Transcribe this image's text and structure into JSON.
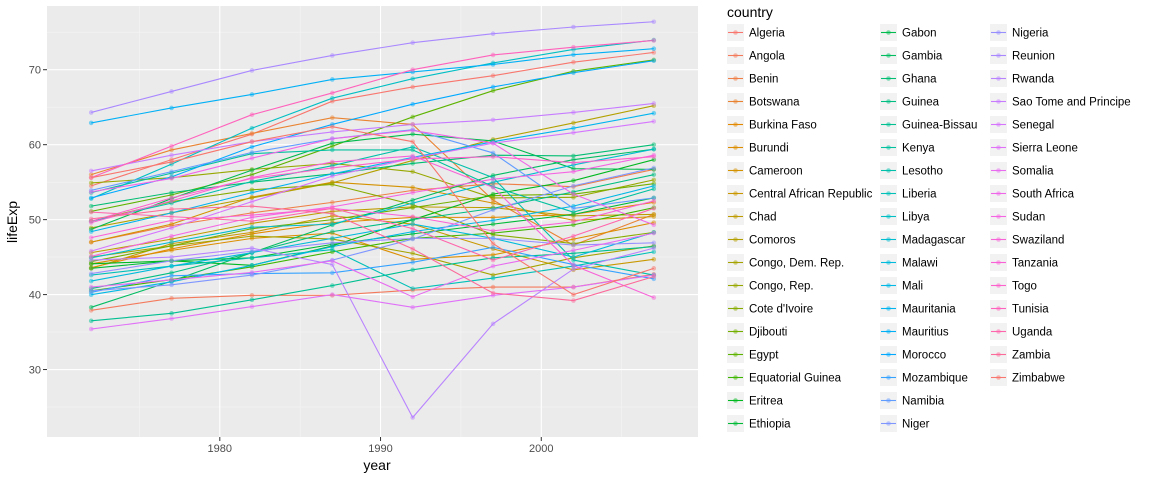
{
  "chart_data": {
    "type": "line",
    "xlabel": "year",
    "ylabel": "lifeExp",
    "xlim": [
      1969.25,
      2009.75
    ],
    "ylim": [
      21,
      78.5
    ],
    "x_ticks": [
      1980,
      1990,
      2000
    ],
    "y_ticks": [
      30,
      40,
      50,
      60,
      70
    ],
    "grid": true,
    "legend_title": "country",
    "legend_position": "right",
    "x": [
      1972,
      1977,
      1982,
      1987,
      1992,
      1997,
      2002,
      2007
    ],
    "series": [
      {
        "name": "Algeria",
        "color": "#F8766D",
        "values": [
          54.5,
          58.0,
          61.4,
          65.8,
          67.7,
          69.2,
          71.0,
          72.3
        ]
      },
      {
        "name": "Angola",
        "color": "#F47A5C",
        "values": [
          37.9,
          39.5,
          39.9,
          39.9,
          40.6,
          41.0,
          41.0,
          42.7
        ]
      },
      {
        "name": "Benin",
        "color": "#EF7F47",
        "values": [
          47.0,
          49.2,
          50.9,
          52.3,
          53.9,
          54.8,
          54.4,
          56.7
        ]
      },
      {
        "name": "Botswana",
        "color": "#EA8331",
        "values": [
          56.0,
          59.3,
          61.5,
          63.6,
          62.7,
          52.6,
          46.6,
          50.7
        ]
      },
      {
        "name": "Burkina Faso",
        "color": "#E38900",
        "values": [
          43.6,
          46.1,
          48.1,
          49.6,
          50.3,
          50.3,
          50.7,
          52.3
        ]
      },
      {
        "name": "Burundi",
        "color": "#DC8E00",
        "values": [
          44.1,
          45.9,
          47.5,
          48.2,
          44.7,
          45.3,
          47.4,
          49.6
        ]
      },
      {
        "name": "Cameroon",
        "color": "#D49200",
        "values": [
          47.0,
          49.4,
          53.0,
          55.0,
          54.3,
          52.2,
          49.9,
          50.4
        ]
      },
      {
        "name": "Central African Republic",
        "color": "#C99800",
        "values": [
          43.5,
          46.8,
          48.3,
          50.5,
          49.4,
          46.1,
          43.3,
          44.7
        ]
      },
      {
        "name": "Chad",
        "color": "#BE9C00",
        "values": [
          45.6,
          47.4,
          49.5,
          51.1,
          51.7,
          51.6,
          50.5,
          50.7
        ]
      },
      {
        "name": "Comoros",
        "color": "#B3A000",
        "values": [
          48.9,
          50.9,
          52.9,
          54.9,
          57.9,
          60.7,
          62.9,
          65.2
        ]
      },
      {
        "name": "Congo, Dem. Rep.",
        "color": "#A6A300",
        "values": [
          45.0,
          46.5,
          47.8,
          47.4,
          45.5,
          42.6,
          44.9,
          46.5
        ]
      },
      {
        "name": "Congo, Rep.",
        "color": "#97A800",
        "values": [
          54.9,
          55.6,
          56.7,
          57.5,
          56.4,
          52.9,
          52.97,
          55.3
        ]
      },
      {
        "name": "Cote d'Ivoire",
        "color": "#87AB00",
        "values": [
          49.8,
          52.4,
          53.98,
          54.7,
          52.0,
          47.99,
          46.8,
          48.3
        ]
      },
      {
        "name": "Djibouti",
        "color": "#74AF00",
        "values": [
          44.4,
          46.5,
          48.8,
          50.0,
          51.6,
          53.2,
          53.4,
          54.8
        ]
      },
      {
        "name": "Egypt",
        "color": "#5DB300",
        "values": [
          51.1,
          53.3,
          56.0,
          59.8,
          63.7,
          67.2,
          69.8,
          71.3
        ]
      },
      {
        "name": "Equatorial Guinea",
        "color": "#3DB600",
        "values": [
          40.5,
          42.0,
          43.7,
          45.7,
          47.5,
          48.2,
          49.3,
          51.6
        ]
      },
      {
        "name": "Eritrea",
        "color": "#00B81F",
        "values": [
          44.1,
          44.5,
          43.9,
          46.5,
          49.99,
          53.4,
          55.2,
          58.0
        ]
      },
      {
        "name": "Ethiopia",
        "color": "#00BA38",
        "values": [
          43.5,
          44.5,
          44.9,
          46.7,
          48.1,
          49.4,
          50.7,
          52.9
        ]
      },
      {
        "name": "Gabon",
        "color": "#00BB4E",
        "values": [
          48.7,
          52.8,
          56.6,
          60.2,
          61.4,
          60.5,
          56.8,
          56.7
        ]
      },
      {
        "name": "Gambia",
        "color": "#00BC61",
        "values": [
          38.3,
          41.8,
          45.6,
          49.3,
          52.6,
          55.9,
          58.0,
          59.4
        ]
      },
      {
        "name": "Ghana",
        "color": "#00BD72",
        "values": [
          51.8,
          53.6,
          55.0,
          56.1,
          57.5,
          58.6,
          58.5,
          60.0
        ]
      },
      {
        "name": "Guinea",
        "color": "#00BE82",
        "values": [
          40.8,
          42.9,
          45.6,
          48.4,
          50.0,
          51.5,
          53.7,
          56.0
        ]
      },
      {
        "name": "Guinea-Bissau",
        "color": "#00BF91",
        "values": [
          36.5,
          37.5,
          39.3,
          41.2,
          43.3,
          44.9,
          45.5,
          46.4
        ]
      },
      {
        "name": "Kenya",
        "color": "#00C09E",
        "values": [
          53.6,
          56.2,
          58.8,
          59.3,
          59.3,
          54.4,
          50.99,
          54.1
        ]
      },
      {
        "name": "Lesotho",
        "color": "#00C0AB",
        "values": [
          49.8,
          52.2,
          55.1,
          57.2,
          59.7,
          55.6,
          44.6,
          42.6
        ]
      },
      {
        "name": "Liberia",
        "color": "#00C0B8",
        "values": [
          42.6,
          43.8,
          44.9,
          46.0,
          40.8,
          42.2,
          43.8,
          45.7
        ]
      },
      {
        "name": "Libya",
        "color": "#00BFC4",
        "values": [
          52.8,
          57.4,
          62.2,
          66.2,
          68.8,
          70.9,
          72.7,
          73.95
        ]
      },
      {
        "name": "Madagascar",
        "color": "#00BDD0",
        "values": [
          44.9,
          47.0,
          48.99,
          49.4,
          52.2,
          54.98,
          57.3,
          59.4
        ]
      },
      {
        "name": "Malawi",
        "color": "#00BBDB",
        "values": [
          41.8,
          43.8,
          45.6,
          47.5,
          49.4,
          47.5,
          45.0,
          48.3
        ]
      },
      {
        "name": "Mali",
        "color": "#00B8E5",
        "values": [
          39.98,
          41.7,
          43.9,
          46.4,
          48.4,
          49.9,
          51.8,
          54.5
        ]
      },
      {
        "name": "Mauritania",
        "color": "#00B4EF",
        "values": [
          48.4,
          50.9,
          53.6,
          56.1,
          58.3,
          60.4,
          62.2,
          64.2
        ]
      },
      {
        "name": "Mauritius",
        "color": "#00B0F6",
        "values": [
          62.9,
          64.9,
          66.7,
          68.7,
          69.7,
          70.7,
          72.0,
          72.8
        ]
      },
      {
        "name": "Morocco",
        "color": "#00A9FF",
        "values": [
          52.9,
          55.7,
          59.7,
          62.7,
          65.4,
          67.7,
          69.6,
          71.2
        ]
      },
      {
        "name": "Mozambique",
        "color": "#35A2FF",
        "values": [
          40.3,
          42.5,
          42.8,
          42.9,
          44.3,
          46.3,
          44.0,
          42.1
        ]
      },
      {
        "name": "Namibia",
        "color": "#619CFF",
        "values": [
          53.9,
          56.4,
          58.97,
          60.8,
          62.0,
          58.9,
          51.5,
          52.9
        ]
      },
      {
        "name": "Niger",
        "color": "#7F96FF",
        "values": [
          40.5,
          41.3,
          42.6,
          44.6,
          47.4,
          51.3,
          54.5,
          56.9
        ]
      },
      {
        "name": "Nigeria",
        "color": "#988FFF",
        "values": [
          42.8,
          44.5,
          45.8,
          46.9,
          47.5,
          47.5,
          46.6,
          46.9
        ]
      },
      {
        "name": "Reunion",
        "color": "#A988FF",
        "values": [
          64.3,
          67.1,
          69.9,
          71.9,
          73.6,
          74.8,
          75.7,
          76.4
        ]
      },
      {
        "name": "Rwanda",
        "color": "#B983FF",
        "values": [
          44.6,
          45.0,
          46.2,
          44.0,
          23.6,
          36.1,
          43.4,
          46.2
        ]
      },
      {
        "name": "Sao Tome and Principe",
        "color": "#C77CFF",
        "values": [
          56.5,
          58.6,
          60.4,
          61.7,
          62.7,
          63.3,
          64.3,
          65.5
        ]
      },
      {
        "name": "Senegal",
        "color": "#D575FE",
        "values": [
          45.8,
          48.9,
          52.4,
          55.8,
          58.2,
          60.2,
          61.6,
          63.1
        ]
      },
      {
        "name": "Sierra Leone",
        "color": "#E070F8",
        "values": [
          35.4,
          36.8,
          38.4,
          40.0,
          38.3,
          39.9,
          41.0,
          42.6
        ]
      },
      {
        "name": "Somalia",
        "color": "#E86BF0",
        "values": [
          41.0,
          41.97,
          42.96,
          44.5,
          39.7,
          43.8,
          45.9,
          48.2
        ]
      },
      {
        "name": "South Africa",
        "color": "#F066E9",
        "values": [
          53.7,
          55.5,
          58.2,
          60.8,
          61.9,
          60.2,
          53.4,
          49.3
        ]
      },
      {
        "name": "Sudan",
        "color": "#F564E3",
        "values": [
          45.1,
          47.8,
          50.3,
          51.7,
          53.6,
          55.4,
          56.4,
          58.6
        ]
      },
      {
        "name": "Swaziland",
        "color": "#F862D8",
        "values": [
          49.6,
          52.5,
          55.6,
          57.7,
          58.5,
          54.3,
          43.9,
          39.6
        ]
      },
      {
        "name": "Tanzania",
        "color": "#FB61D7",
        "values": [
          47.6,
          49.9,
          50.6,
          51.5,
          50.4,
          48.5,
          49.7,
          52.5
        ]
      },
      {
        "name": "Togo",
        "color": "#FD61CB",
        "values": [
          49.8,
          52.9,
          55.5,
          56.9,
          58.1,
          58.4,
          57.6,
          58.4
        ]
      },
      {
        "name": "Tunisia",
        "color": "#FF62BC",
        "values": [
          55.6,
          59.8,
          64.0,
          66.9,
          70.0,
          71.97,
          73.0,
          73.9
        ]
      },
      {
        "name": "Uganda",
        "color": "#FF65AC",
        "values": [
          51.0,
          50.4,
          49.8,
          51.5,
          48.8,
          44.6,
          47.8,
          51.5
        ]
      },
      {
        "name": "Zambia",
        "color": "#FC6A9A",
        "values": [
          50.1,
          51.4,
          51.8,
          50.8,
          46.1,
          40.2,
          39.2,
          42.4
        ]
      },
      {
        "name": "Zimbabwe",
        "color": "#F8766D",
        "values": [
          55.6,
          57.7,
          60.4,
          62.4,
          60.4,
          46.8,
          39.99,
          43.5
        ]
      }
    ]
  }
}
